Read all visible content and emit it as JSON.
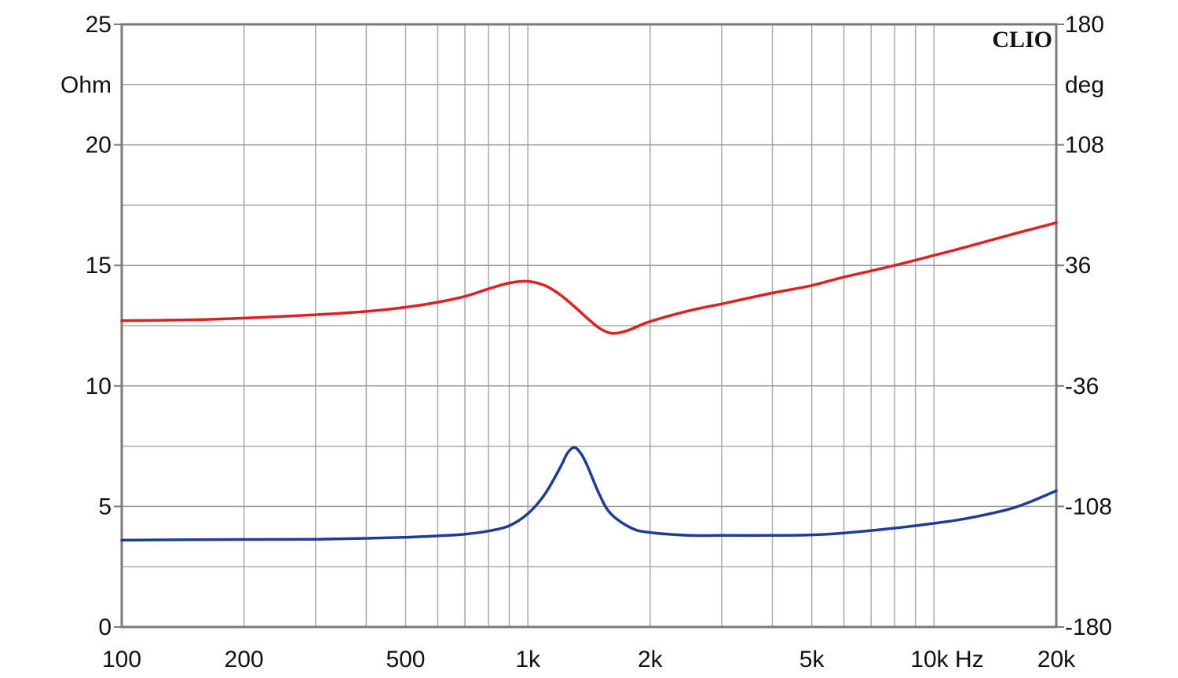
{
  "chart_data": {
    "type": "line",
    "brand": "CLIO",
    "x_scale": "log",
    "xlim": [
      100,
      20000
    ],
    "x_ticks": [
      {
        "value": 100,
        "label": "100"
      },
      {
        "value": 200,
        "label": "200"
      },
      {
        "value": 500,
        "label": "500"
      },
      {
        "value": 1000,
        "label": "1k"
      },
      {
        "value": 2000,
        "label": "2k"
      },
      {
        "value": 5000,
        "label": "5k"
      },
      {
        "value": 10000,
        "label": "10k Hz"
      },
      {
        "value": 20000,
        "label": "20k"
      }
    ],
    "y_left": {
      "unit": "Ohm",
      "lim": [
        0,
        25
      ],
      "ticks": [
        {
          "value": 0,
          "label": "0"
        },
        {
          "value": 5,
          "label": "5"
        },
        {
          "value": 10,
          "label": "10"
        },
        {
          "value": 15,
          "label": "15"
        },
        {
          "value": 20,
          "label": "20"
        },
        {
          "value": 25,
          "label": "25"
        }
      ]
    },
    "y_right": {
      "unit": "deg",
      "lim": [
        -180,
        180
      ],
      "ticks": [
        {
          "value": -180,
          "label": "-180"
        },
        {
          "value": -108,
          "label": "-108"
        },
        {
          "value": -36,
          "label": "-36"
        },
        {
          "value": 36,
          "label": "36"
        },
        {
          "value": 108,
          "label": "108"
        },
        {
          "value": 180,
          "label": "180"
        }
      ]
    },
    "grid": true,
    "series": [
      {
        "axis": "left",
        "color": "#1f3c99",
        "x": [
          100,
          150,
          200,
          300,
          400,
          500,
          600,
          700,
          800,
          900,
          1000,
          1100,
          1200,
          1250,
          1300,
          1350,
          1400,
          1500,
          1600,
          1800,
          2000,
          2500,
          3000,
          4000,
          5000,
          6000,
          8000,
          10000,
          12000,
          15000,
          17000,
          20000
        ],
        "values": [
          3.6,
          3.62,
          3.63,
          3.64,
          3.68,
          3.72,
          3.78,
          3.85,
          3.98,
          4.2,
          4.7,
          5.5,
          6.6,
          7.2,
          7.45,
          7.2,
          6.7,
          5.5,
          4.7,
          4.1,
          3.92,
          3.8,
          3.8,
          3.8,
          3.82,
          3.9,
          4.1,
          4.3,
          4.5,
          4.85,
          5.15,
          5.65
        ]
      },
      {
        "axis": "right",
        "color": "#e02020",
        "x": [
          100,
          150,
          200,
          300,
          400,
          500,
          600,
          700,
          800,
          900,
          1000,
          1100,
          1200,
          1300,
          1400,
          1500,
          1600,
          1700,
          1800,
          2000,
          2500,
          3000,
          4000,
          5000,
          6000,
          8000,
          10000,
          12000,
          15000,
          17000,
          20000
        ],
        "values": [
          3,
          3.5,
          4.5,
          6.5,
          8.5,
          11,
          14,
          17.5,
          22,
          25.5,
          26.5,
          24,
          18.5,
          11.5,
          4.5,
          -1.5,
          -4.5,
          -4,
          -2,
          2.5,
          9,
          13,
          19.5,
          24,
          29,
          36,
          42,
          47,
          53.5,
          57,
          61.5
        ]
      }
    ]
  }
}
